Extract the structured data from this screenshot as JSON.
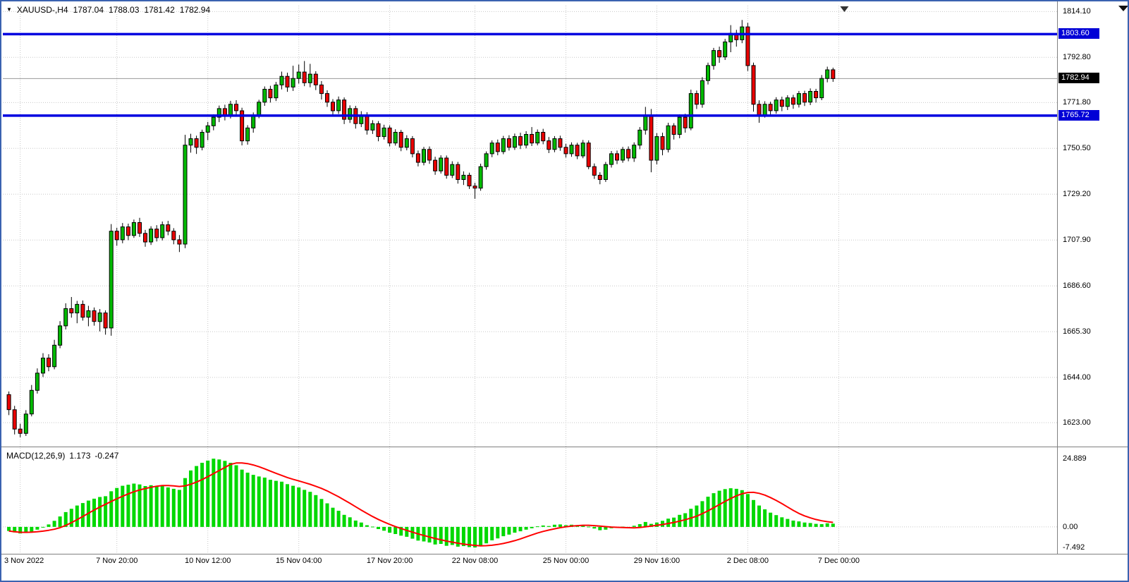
{
  "window": {
    "bg": "#ffffff",
    "frame_color": "#3a62b0"
  },
  "header": {
    "dropdown_icon": "▼",
    "symbol_period": "XAUUSD-,H4",
    "open": "1787.04",
    "high": "1788.03",
    "low": "1781.42",
    "close": "1782.94"
  },
  "macd_panel": {
    "name_label": "MACD(12,26,9)",
    "main_value": "1.173",
    "signal_value": "-0.247"
  },
  "chart_data": {
    "type": "candlestick",
    "symbol": "XAUUSD-",
    "timeframe": "H4",
    "title": "XAUUSD- H4 with MACD(12,26,9)",
    "grid": true,
    "ylim_main": [
      1612.2,
      1816.2
    ],
    "ylim_macd": [
      -9.3,
      28.8
    ],
    "macd_params": [
      12,
      26,
      9
    ],
    "price_axis_ticks": [
      {
        "label": "1814.10",
        "value": 1814.1
      },
      {
        "label": "1792.80",
        "value": 1792.8
      },
      {
        "label": "1771.80",
        "value": 1771.8
      },
      {
        "label": "1750.50",
        "value": 1750.5
      },
      {
        "label": "1729.20",
        "value": 1729.2
      },
      {
        "label": "1707.90",
        "value": 1707.9
      },
      {
        "label": "1686.60",
        "value": 1686.6
      },
      {
        "label": "1665.30",
        "value": 1665.3
      },
      {
        "label": "1644.00",
        "value": 1644.0
      },
      {
        "label": "1623.00",
        "value": 1623.0
      }
    ],
    "macd_axis_ticks": [
      {
        "label": "24.889",
        "value": 24.889
      },
      {
        "label": "0.00",
        "value": 0
      },
      {
        "label": "-7.492",
        "value": -7.492
      }
    ],
    "time_axis_ticks": [
      {
        "label": "3 Nov 2022",
        "index": 2
      },
      {
        "label": "7 Nov 20:00",
        "index": 19
      },
      {
        "label": "10 Nov 12:00",
        "index": 35
      },
      {
        "label": "15 Nov 04:00",
        "index": 51
      },
      {
        "label": "17 Nov 20:00",
        "index": 67
      },
      {
        "label": "22 Nov 08:00",
        "index": 82
      },
      {
        "label": "25 Nov 00:00",
        "index": 98
      },
      {
        "label": "29 Nov 16:00",
        "index": 114
      },
      {
        "label": "2 Dec 08:00",
        "index": 130
      },
      {
        "label": "7 Dec 00:00",
        "index": 146
      }
    ],
    "hlines": [
      {
        "label": "1803.60",
        "value": 1803.6
      },
      {
        "label": "1765.72",
        "value": 1765.72
      }
    ],
    "current_price": {
      "label": "1782.94",
      "value": 1782.94
    },
    "colors": {
      "up": "#00ba00",
      "down": "#ea0000",
      "candle_outline": "#000000",
      "histogram": "#00d800",
      "signal_line": "#ff0000",
      "hline": "#0000e0",
      "grid": "#c8c8c8",
      "current_price_line": "#9a9a9a",
      "tag_current_bg": "#000000",
      "tag_hline_bg": "#0000d6"
    },
    "ohlc": [
      [
        1636.0,
        1637.5,
        1626.5,
        1629.0
      ],
      [
        1629.0,
        1630.8,
        1617.5,
        1620.0
      ],
      [
        1620.0,
        1622.5,
        1616.2,
        1618.0
      ],
      [
        1618.0,
        1628.8,
        1616.8,
        1627.0
      ],
      [
        1627.0,
        1640.5,
        1625.9,
        1638.0
      ],
      [
        1638.0,
        1648.2,
        1636.5,
        1646.0
      ],
      [
        1646.0,
        1655.3,
        1644.2,
        1653.0
      ],
      [
        1653.0,
        1654.8,
        1646.9,
        1649.0
      ],
      [
        1649.0,
        1661.5,
        1647.8,
        1659.0
      ],
      [
        1659.0,
        1670.2,
        1657.6,
        1668.0
      ],
      [
        1668.0,
        1678.5,
        1666.3,
        1676.0
      ],
      [
        1676.0,
        1681.4,
        1671.8,
        1674.0
      ],
      [
        1674.0,
        1679.6,
        1669.2,
        1678.0
      ],
      [
        1678.0,
        1679.8,
        1670.4,
        1672.0
      ],
      [
        1672.0,
        1677.3,
        1667.8,
        1675.0
      ],
      [
        1675.0,
        1676.5,
        1668.1,
        1670.0
      ],
      [
        1670.0,
        1675.8,
        1665.4,
        1674.0
      ],
      [
        1674.0,
        1675.2,
        1663.9,
        1667.0
      ],
      [
        1667.0,
        1715.3,
        1663.4,
        1712.0
      ],
      [
        1712.0,
        1713.6,
        1705.2,
        1708.0
      ],
      [
        1708.0,
        1715.8,
        1706.4,
        1714.0
      ],
      [
        1714.0,
        1715.5,
        1707.8,
        1710.0
      ],
      [
        1710.0,
        1717.4,
        1708.9,
        1716.0
      ],
      [
        1716.0,
        1718.2,
        1709.3,
        1711.0
      ],
      [
        1711.0,
        1712.6,
        1704.8,
        1707.0
      ],
      [
        1707.0,
        1714.3,
        1705.6,
        1713.0
      ],
      [
        1713.0,
        1714.8,
        1707.2,
        1709.0
      ],
      [
        1709.0,
        1716.5,
        1707.7,
        1715.0
      ],
      [
        1715.0,
        1716.8,
        1710.1,
        1712.0
      ],
      [
        1712.0,
        1713.4,
        1705.9,
        1708.0
      ],
      [
        1708.0,
        1710.2,
        1702.3,
        1706.0
      ],
      [
        1706.0,
        1756.8,
        1704.1,
        1752.0
      ],
      [
        1752.0,
        1757.3,
        1748.5,
        1755.0
      ],
      [
        1755.0,
        1756.4,
        1747.9,
        1751.0
      ],
      [
        1751.0,
        1759.2,
        1749.6,
        1758.0
      ],
      [
        1758.0,
        1762.8,
        1754.3,
        1761.0
      ],
      [
        1761.0,
        1766.3,
        1758.9,
        1765.0
      ],
      [
        1765.0,
        1770.4,
        1762.7,
        1769.0
      ],
      [
        1769.0,
        1770.8,
        1763.5,
        1766.0
      ],
      [
        1766.0,
        1772.6,
        1764.4,
        1771.0
      ],
      [
        1771.0,
        1772.9,
        1765.8,
        1768.0
      ],
      [
        1768.0,
        1769.4,
        1751.9,
        1754.0
      ],
      [
        1754.0,
        1761.3,
        1752.2,
        1760.0
      ],
      [
        1760.0,
        1767.2,
        1757.8,
        1766.0
      ],
      [
        1766.0,
        1773.1,
        1764.5,
        1772.0
      ],
      [
        1772.0,
        1779.3,
        1770.3,
        1778.0
      ],
      [
        1778.0,
        1779.6,
        1771.8,
        1774.0
      ],
      [
        1774.0,
        1781.4,
        1772.5,
        1780.0
      ],
      [
        1780.0,
        1786.2,
        1777.9,
        1784.0
      ],
      [
        1784.0,
        1785.7,
        1776.8,
        1779.0
      ],
      [
        1779.0,
        1788.9,
        1777.2,
        1783.0
      ],
      [
        1783.0,
        1789.5,
        1780.6,
        1786.0
      ],
      [
        1786.0,
        1791.1,
        1779.4,
        1781.0
      ],
      [
        1781.0,
        1789.8,
        1778.9,
        1785.0
      ],
      [
        1785.0,
        1786.4,
        1777.6,
        1780.0
      ],
      [
        1780.0,
        1781.8,
        1773.2,
        1776.0
      ],
      [
        1776.0,
        1777.5,
        1769.8,
        1772.0
      ],
      [
        1772.0,
        1773.4,
        1766.1,
        1768.0
      ],
      [
        1768.0,
        1774.6,
        1766.5,
        1773.0
      ],
      [
        1773.0,
        1774.2,
        1761.8,
        1764.0
      ],
      [
        1764.0,
        1770.5,
        1762.3,
        1769.0
      ],
      [
        1769.0,
        1770.3,
        1759.7,
        1762.0
      ],
      [
        1762.0,
        1767.8,
        1760.4,
        1766.0
      ],
      [
        1766.0,
        1767.3,
        1756.9,
        1759.0
      ],
      [
        1759.0,
        1763.6,
        1757.2,
        1762.0
      ],
      [
        1762.0,
        1763.2,
        1753.8,
        1756.0
      ],
      [
        1756.0,
        1761.5,
        1754.6,
        1760.0
      ],
      [
        1760.0,
        1761.2,
        1751.4,
        1753.0
      ],
      [
        1753.0,
        1759.4,
        1751.8,
        1758.0
      ],
      [
        1758.0,
        1759.1,
        1749.2,
        1751.0
      ],
      [
        1751.0,
        1756.6,
        1749.6,
        1755.0
      ],
      [
        1755.0,
        1756.2,
        1746.3,
        1748.0
      ],
      [
        1748.0,
        1749.5,
        1742.1,
        1744.0
      ],
      [
        1744.0,
        1751.2,
        1742.6,
        1750.0
      ],
      [
        1750.0,
        1751.4,
        1743.3,
        1745.0
      ],
      [
        1745.0,
        1746.6,
        1738.2,
        1740.0
      ],
      [
        1740.0,
        1747.3,
        1738.8,
        1746.0
      ],
      [
        1746.0,
        1747.2,
        1736.4,
        1738.0
      ],
      [
        1738.0,
        1744.5,
        1736.7,
        1743.0
      ],
      [
        1743.0,
        1744.2,
        1734.1,
        1736.0
      ],
      [
        1736.0,
        1739.8,
        1733.5,
        1738.0
      ],
      [
        1738.0,
        1739.2,
        1731.6,
        1733.0
      ],
      [
        1733.0,
        1734.5,
        1727.1,
        1732.0
      ],
      [
        1732.0,
        1743.4,
        1730.8,
        1742.0
      ],
      [
        1742.0,
        1749.1,
        1740.6,
        1748.0
      ],
      [
        1748.0,
        1754.2,
        1746.4,
        1753.0
      ],
      [
        1753.0,
        1754.6,
        1747.3,
        1749.0
      ],
      [
        1749.0,
        1756.3,
        1747.8,
        1755.0
      ],
      [
        1755.0,
        1756.6,
        1749.5,
        1751.0
      ],
      [
        1751.0,
        1757.4,
        1749.8,
        1756.0
      ],
      [
        1756.0,
        1757.8,
        1750.2,
        1752.0
      ],
      [
        1752.0,
        1758.5,
        1750.5,
        1757.0
      ],
      [
        1757.0,
        1760.4,
        1751.6,
        1753.0
      ],
      [
        1753.0,
        1759.3,
        1751.9,
        1758.0
      ],
      [
        1758.0,
        1759.6,
        1752.4,
        1754.0
      ],
      [
        1754.0,
        1755.8,
        1748.3,
        1750.0
      ],
      [
        1750.0,
        1756.2,
        1748.7,
        1755.0
      ],
      [
        1755.0,
        1756.4,
        1749.4,
        1751.0
      ],
      [
        1751.0,
        1752.6,
        1746.2,
        1748.0
      ],
      [
        1748.0,
        1753.3,
        1746.6,
        1752.0
      ],
      [
        1752.0,
        1753.1,
        1745.5,
        1747.0
      ],
      [
        1747.0,
        1754.4,
        1745.9,
        1753.0
      ],
      [
        1753.0,
        1754.2,
        1740.8,
        1742.0
      ],
      [
        1742.0,
        1743.5,
        1736.3,
        1738.0
      ],
      [
        1738.0,
        1739.4,
        1733.8,
        1736.0
      ],
      [
        1736.0,
        1744.2,
        1734.9,
        1743.0
      ],
      [
        1743.0,
        1749.3,
        1741.6,
        1748.0
      ],
      [
        1748.0,
        1749.5,
        1743.2,
        1745.0
      ],
      [
        1745.0,
        1751.2,
        1743.8,
        1750.0
      ],
      [
        1750.0,
        1751.4,
        1744.5,
        1746.0
      ],
      [
        1746.0,
        1753.3,
        1744.2,
        1752.0
      ],
      [
        1752.0,
        1760.4,
        1750.1,
        1759.0
      ],
      [
        1759.0,
        1769.8,
        1756.9,
        1766.0
      ],
      [
        1766.0,
        1768.8,
        1739.4,
        1745.0
      ],
      [
        1745.0,
        1757.6,
        1743.1,
        1756.0
      ],
      [
        1756.0,
        1757.8,
        1747.3,
        1750.0
      ],
      [
        1750.0,
        1762.4,
        1748.6,
        1761.0
      ],
      [
        1761.0,
        1762.2,
        1754.6,
        1757.0
      ],
      [
        1757.0,
        1766.3,
        1755.2,
        1765.0
      ],
      [
        1765.0,
        1766.6,
        1757.8,
        1760.0
      ],
      [
        1760.0,
        1777.8,
        1758.9,
        1776.0
      ],
      [
        1776.0,
        1777.4,
        1768.8,
        1771.0
      ],
      [
        1771.0,
        1783.6,
        1769.4,
        1782.0
      ],
      [
        1782.0,
        1790.4,
        1780.2,
        1789.0
      ],
      [
        1789.0,
        1797.2,
        1787.1,
        1796.0
      ],
      [
        1796.0,
        1797.8,
        1790.3,
        1793.0
      ],
      [
        1793.0,
        1801.4,
        1791.6,
        1800.0
      ],
      [
        1800.0,
        1807.8,
        1795.2,
        1804.0
      ],
      [
        1804.0,
        1805.6,
        1797.8,
        1801.0
      ],
      [
        1801.0,
        1810.2,
        1799.4,
        1807.0
      ],
      [
        1807.0,
        1808.9,
        1786.5,
        1789.0
      ],
      [
        1789.0,
        1790.4,
        1767.6,
        1771.0
      ],
      [
        1771.0,
        1772.8,
        1762.4,
        1766.0
      ],
      [
        1766.0,
        1772.4,
        1764.8,
        1771.0
      ],
      [
        1771.0,
        1772.2,
        1765.9,
        1768.0
      ],
      [
        1768.0,
        1774.3,
        1766.6,
        1773.0
      ],
      [
        1773.0,
        1774.5,
        1767.8,
        1770.0
      ],
      [
        1770.0,
        1775.2,
        1768.3,
        1774.0
      ],
      [
        1774.0,
        1775.4,
        1768.9,
        1771.0
      ],
      [
        1771.0,
        1777.2,
        1769.5,
        1776.0
      ],
      [
        1776.0,
        1777.3,
        1770.2,
        1772.0
      ],
      [
        1772.0,
        1778.4,
        1770.6,
        1777.0
      ],
      [
        1777.0,
        1778.2,
        1771.8,
        1774.0
      ],
      [
        1774.0,
        1784.6,
        1772.9,
        1783.0
      ],
      [
        1783.0,
        1788.5,
        1781.2,
        1787.0
      ],
      [
        1787.04,
        1788.03,
        1781.42,
        1782.94
      ]
    ],
    "macd_histogram": [
      -1.5,
      -2.0,
      -2.4,
      -2.1,
      -1.7,
      -1.0,
      -0.2,
      0.9,
      2.2,
      3.8,
      5.4,
      6.6,
      7.8,
      8.7,
      9.6,
      10.3,
      10.9,
      11.2,
      13.0,
      14.2,
      15.0,
      15.4,
      15.8,
      15.5,
      14.9,
      15.2,
      14.7,
      14.9,
      14.4,
      13.9,
      13.5,
      17.8,
      20.6,
      22.2,
      23.4,
      24.2,
      24.889,
      24.6,
      24.1,
      23.4,
      22.5,
      20.9,
      19.8,
      19.0,
      18.4,
      18.0,
      17.2,
      16.8,
      16.5,
      15.6,
      15.0,
      14.4,
      13.5,
      12.8,
      11.6,
      10.2,
      8.6,
      7.0,
      5.9,
      4.4,
      3.5,
      2.3,
      1.6,
      0.6,
      0.1,
      -0.8,
      -1.4,
      -2.1,
      -2.6,
      -3.2,
      -3.6,
      -4.3,
      -5.0,
      -5.3,
      -5.7,
      -6.4,
      -6.2,
      -6.9,
      -6.6,
      -7.2,
      -7.0,
      -7.35,
      -7.492,
      -6.9,
      -6.0,
      -4.9,
      -4.2,
      -3.4,
      -2.8,
      -2.1,
      -1.6,
      -1.0,
      -0.5,
      0.2,
      0.5,
      0.3,
      0.8,
      0.9,
      0.6,
      0.8,
      0.5,
      0.7,
      0.1,
      -0.6,
      -1.2,
      -1.0,
      -0.5,
      -0.3,
      0.1,
      0.0,
      0.4,
      1.0,
      1.8,
      1.1,
      1.6,
      2.2,
      3.0,
      3.4,
      4.4,
      5.0,
      6.6,
      7.8,
      9.4,
      11.0,
      12.3,
      13.2,
      13.8,
      14.1,
      13.9,
      13.4,
      12.0,
      9.8,
      7.8,
      6.4,
      5.2,
      4.3,
      3.5,
      2.9,
      2.3,
      2.0,
      1.6,
      1.4,
      1.1,
      1.0,
      1.3,
      1.173
    ]
  }
}
